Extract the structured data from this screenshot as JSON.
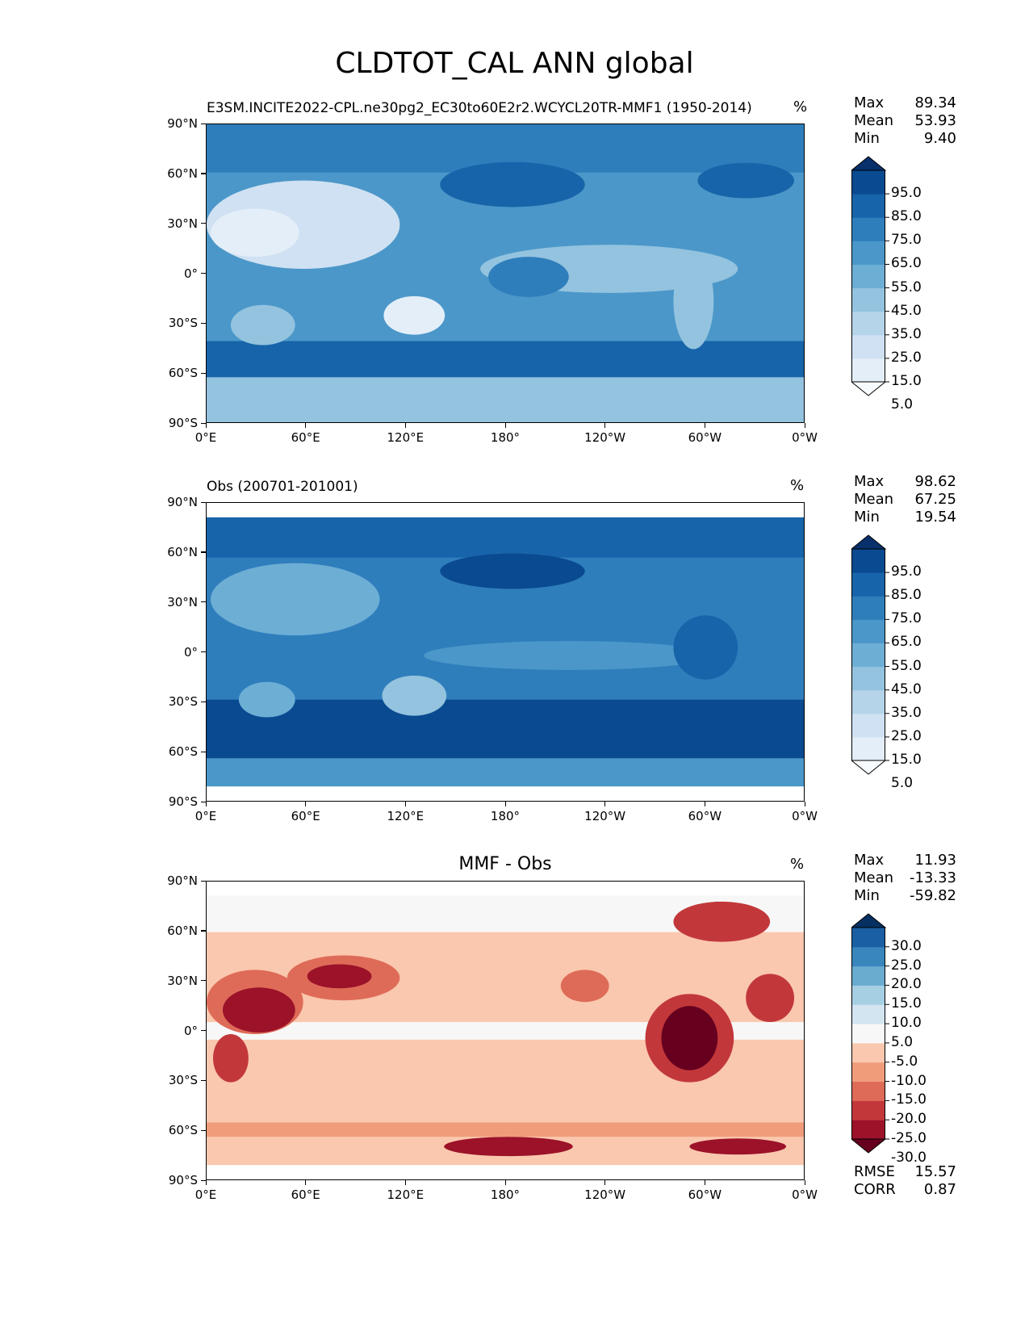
{
  "figure": {
    "title": "CLDTOT_CAL ANN global"
  },
  "axes": {
    "lat_labels": [
      "90°N",
      "60°N",
      "30°N",
      "0°",
      "30°S",
      "60°S",
      "90°S"
    ],
    "lon_labels": [
      "0°E",
      "60°E",
      "120°E",
      "180°",
      "120°W",
      "60°W",
      "0°W"
    ]
  },
  "panels": [
    {
      "title_left": "E3SM.INCITE2022-CPL.ne30pg2_EC30to60E2r2.WCYCL20TR-MMF1 (1950-2014)",
      "title_center": "",
      "units": "%",
      "stats": [
        {
          "label": "Max",
          "value": "89.34"
        },
        {
          "label": "Mean",
          "value": "53.93"
        },
        {
          "label": "Min",
          "value": "9.40"
        }
      ],
      "colorbar": {
        "labels": [
          "95.0",
          "85.0",
          "75.0",
          "65.0",
          "55.0",
          "45.0",
          "35.0",
          "25.0",
          "15.0",
          "5.0"
        ],
        "colors": [
          "#f7fbff",
          "#e3eef9",
          "#cfe1f2",
          "#b5d4e9",
          "#93c3df",
          "#6daed5",
          "#4b97c9",
          "#2f7ebc",
          "#1864aa",
          "#0a4a90",
          "#08306b"
        ]
      }
    },
    {
      "title_left": "Obs (200701-201001)",
      "title_center": "",
      "units": "%",
      "stats": [
        {
          "label": "Max",
          "value": "98.62"
        },
        {
          "label": "Mean",
          "value": "67.25"
        },
        {
          "label": "Min",
          "value": "19.54"
        }
      ],
      "colorbar": {
        "labels": [
          "95.0",
          "85.0",
          "75.0",
          "65.0",
          "55.0",
          "45.0",
          "35.0",
          "25.0",
          "15.0",
          "5.0"
        ],
        "colors": [
          "#f7fbff",
          "#e3eef9",
          "#cfe1f2",
          "#b5d4e9",
          "#93c3df",
          "#6daed5",
          "#4b97c9",
          "#2f7ebc",
          "#1864aa",
          "#0a4a90",
          "#08306b"
        ]
      }
    },
    {
      "title_left": "",
      "title_center": "MMF - Obs",
      "units": "%",
      "stats": [
        {
          "label": "Max",
          "value": "11.93"
        },
        {
          "label": "Mean",
          "value": "-13.33"
        },
        {
          "label": "Min",
          "value": "-59.82"
        }
      ],
      "metrics": [
        {
          "label": "RMSE",
          "value": "15.57"
        },
        {
          "label": "CORR",
          "value": "0.87"
        }
      ],
      "colorbar": {
        "labels": [
          "30.0",
          "25.0",
          "20.0",
          "15.0",
          "10.0",
          "5.0",
          "-5.0",
          "-10.0",
          "-15.0",
          "-20.0",
          "-25.0",
          "-30.0"
        ],
        "colors": [
          "#67001f",
          "#9b1229",
          "#c2383a",
          "#de6b58",
          "#f09c7b",
          "#fac8ae",
          "#f7f7f7",
          "#d3e5f0",
          "#a6cfe4",
          "#6aacd0",
          "#3886bc",
          "#1a5fa3",
          "#053061"
        ]
      }
    }
  ],
  "chart_data": [
    {
      "type": "heatmap",
      "title": "E3SM.INCITE2022-CPL.ne30pg2_EC30to60E2r2.WCYCL20TR-MMF1 (1950-2014)",
      "units": "%",
      "x_ticks": [
        "0°E",
        "60°E",
        "120°E",
        "180°",
        "120°W",
        "60°W",
        "0°W"
      ],
      "y_ticks": [
        "90°N",
        "60°N",
        "30°N",
        "0°",
        "30°S",
        "60°S",
        "90°S"
      ],
      "xlim": [
        0,
        360
      ],
      "ylim": [
        -90,
        90
      ],
      "levels": [
        5,
        15,
        25,
        35,
        45,
        55,
        65,
        75,
        85,
        95
      ],
      "max": 89.34,
      "mean": 53.93,
      "min": 9.4
    },
    {
      "type": "heatmap",
      "title": "Obs (200701-201001)",
      "units": "%",
      "x_ticks": [
        "0°E",
        "60°E",
        "120°E",
        "180°",
        "120°W",
        "60°W",
        "0°W"
      ],
      "y_ticks": [
        "90°N",
        "60°N",
        "30°N",
        "0°",
        "30°S",
        "60°S",
        "90°S"
      ],
      "xlim": [
        0,
        360
      ],
      "ylim": [
        -90,
        90
      ],
      "levels": [
        5,
        15,
        25,
        35,
        45,
        55,
        65,
        75,
        85,
        95
      ],
      "max": 98.62,
      "mean": 67.25,
      "min": 19.54
    },
    {
      "type": "heatmap",
      "title": "MMF - Obs",
      "units": "%",
      "x_ticks": [
        "0°E",
        "60°E",
        "120°E",
        "180°",
        "120°W",
        "60°W",
        "0°W"
      ],
      "y_ticks": [
        "90°N",
        "60°N",
        "30°N",
        "0°",
        "30°S",
        "60°S",
        "90°S"
      ],
      "xlim": [
        0,
        360
      ],
      "ylim": [
        -90,
        90
      ],
      "levels": [
        -30,
        -25,
        -20,
        -15,
        -10,
        -5,
        5,
        10,
        15,
        20,
        25,
        30
      ],
      "max": 11.93,
      "mean": -13.33,
      "min": -59.82,
      "rmse": 15.57,
      "corr": 0.87
    }
  ]
}
